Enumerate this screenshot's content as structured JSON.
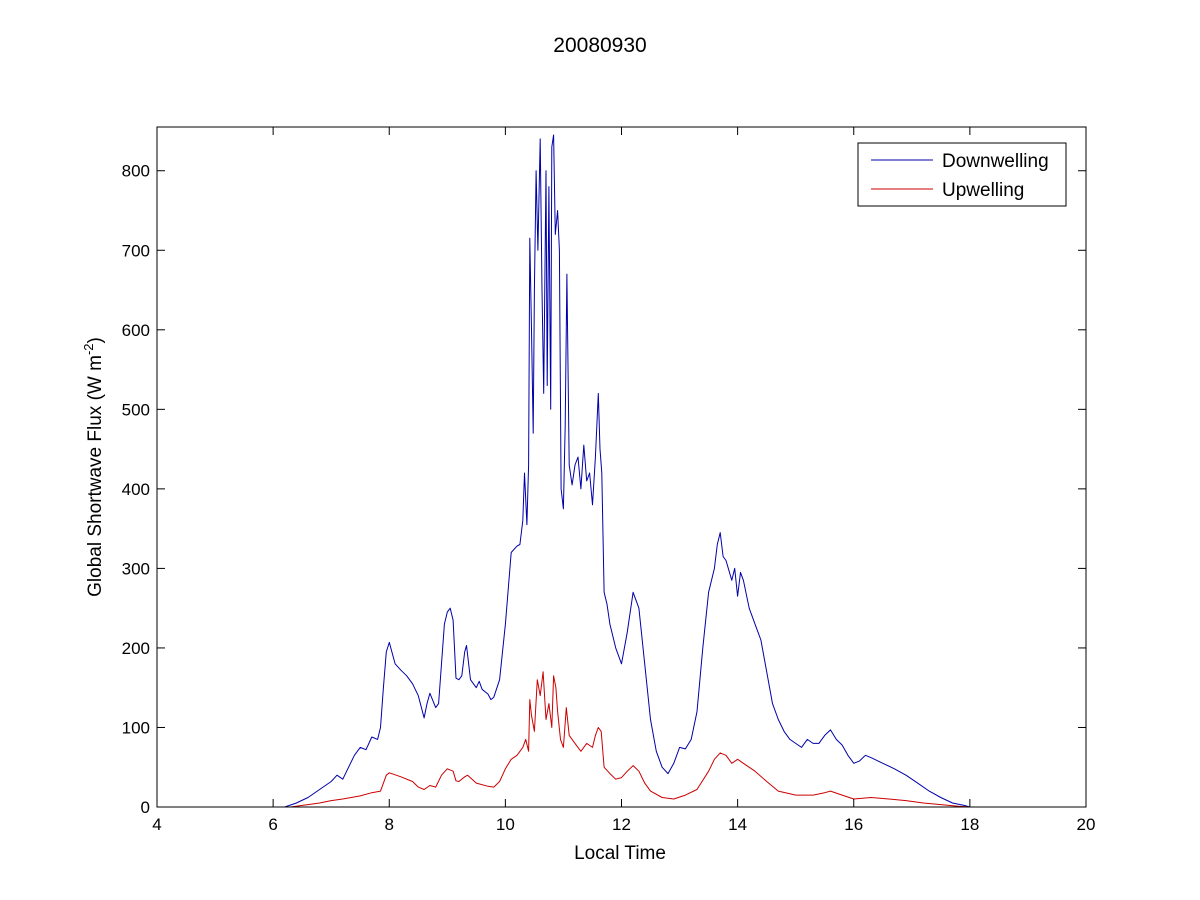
{
  "chart_data": {
    "type": "line",
    "title": "20080930",
    "xlabel": "Local Time",
    "ylabel_main": "Global Shortwave Flux (W m",
    "ylabel_sup": "-2",
    "ylabel_close": ")",
    "xlim": [
      4,
      20
    ],
    "ylim": [
      0,
      855
    ],
    "xticks": [
      4,
      6,
      8,
      10,
      12,
      14,
      16,
      18,
      20
    ],
    "yticks": [
      0,
      100,
      200,
      300,
      400,
      500,
      600,
      700,
      800
    ],
    "legend_position": "top-right",
    "series": [
      {
        "name": "Downwelling",
        "color": "#0000aa",
        "points": [
          [
            4,
            0
          ],
          [
            5.3,
            0
          ],
          [
            6.2,
            0
          ],
          [
            6.4,
            5
          ],
          [
            6.6,
            12
          ],
          [
            6.8,
            22
          ],
          [
            7.0,
            32
          ],
          [
            7.1,
            40
          ],
          [
            7.2,
            35
          ],
          [
            7.3,
            50
          ],
          [
            7.4,
            65
          ],
          [
            7.5,
            75
          ],
          [
            7.6,
            72
          ],
          [
            7.7,
            88
          ],
          [
            7.8,
            85
          ],
          [
            7.85,
            100
          ],
          [
            7.9,
            150
          ],
          [
            7.95,
            195
          ],
          [
            8.0,
            207
          ],
          [
            8.1,
            180
          ],
          [
            8.2,
            172
          ],
          [
            8.3,
            165
          ],
          [
            8.4,
            155
          ],
          [
            8.5,
            140
          ],
          [
            8.6,
            112
          ],
          [
            8.65,
            130
          ],
          [
            8.7,
            143
          ],
          [
            8.8,
            125
          ],
          [
            8.85,
            130
          ],
          [
            8.9,
            180
          ],
          [
            8.95,
            230
          ],
          [
            9.0,
            245
          ],
          [
            9.05,
            250
          ],
          [
            9.1,
            235
          ],
          [
            9.15,
            162
          ],
          [
            9.2,
            160
          ],
          [
            9.25,
            165
          ],
          [
            9.3,
            195
          ],
          [
            9.33,
            203
          ],
          [
            9.4,
            160
          ],
          [
            9.5,
            150
          ],
          [
            9.55,
            158
          ],
          [
            9.6,
            148
          ],
          [
            9.7,
            142
          ],
          [
            9.75,
            135
          ],
          [
            9.8,
            138
          ],
          [
            9.9,
            160
          ],
          [
            10.0,
            230
          ],
          [
            10.1,
            320
          ],
          [
            10.2,
            328
          ],
          [
            10.25,
            330
          ],
          [
            10.3,
            360
          ],
          [
            10.33,
            420
          ],
          [
            10.37,
            355
          ],
          [
            10.4,
            430
          ],
          [
            10.42,
            715
          ],
          [
            10.45,
            600
          ],
          [
            10.48,
            470
          ],
          [
            10.5,
            650
          ],
          [
            10.53,
            800
          ],
          [
            10.56,
            700
          ],
          [
            10.6,
            840
          ],
          [
            10.63,
            650
          ],
          [
            10.66,
            520
          ],
          [
            10.7,
            800
          ],
          [
            10.72,
            530
          ],
          [
            10.75,
            780
          ],
          [
            10.78,
            500
          ],
          [
            10.8,
            830
          ],
          [
            10.83,
            845
          ],
          [
            10.86,
            720
          ],
          [
            10.9,
            750
          ],
          [
            10.93,
            700
          ],
          [
            10.96,
            400
          ],
          [
            11.0,
            375
          ],
          [
            11.03,
            480
          ],
          [
            11.06,
            670
          ],
          [
            11.1,
            430
          ],
          [
            11.15,
            405
          ],
          [
            11.2,
            430
          ],
          [
            11.25,
            440
          ],
          [
            11.3,
            400
          ],
          [
            11.35,
            455
          ],
          [
            11.4,
            410
          ],
          [
            11.45,
            420
          ],
          [
            11.5,
            380
          ],
          [
            11.55,
            440
          ],
          [
            11.6,
            520
          ],
          [
            11.63,
            450
          ],
          [
            11.66,
            420
          ],
          [
            11.7,
            270
          ],
          [
            11.75,
            255
          ],
          [
            11.8,
            230
          ],
          [
            11.9,
            200
          ],
          [
            12.0,
            180
          ],
          [
            12.1,
            220
          ],
          [
            12.2,
            270
          ],
          [
            12.3,
            250
          ],
          [
            12.4,
            180
          ],
          [
            12.5,
            110
          ],
          [
            12.6,
            70
          ],
          [
            12.7,
            50
          ],
          [
            12.8,
            42
          ],
          [
            12.9,
            55
          ],
          [
            13.0,
            75
          ],
          [
            13.1,
            73
          ],
          [
            13.2,
            85
          ],
          [
            13.3,
            120
          ],
          [
            13.4,
            200
          ],
          [
            13.5,
            270
          ],
          [
            13.6,
            300
          ],
          [
            13.65,
            330
          ],
          [
            13.7,
            345
          ],
          [
            13.75,
            315
          ],
          [
            13.8,
            310
          ],
          [
            13.9,
            285
          ],
          [
            13.95,
            300
          ],
          [
            14.0,
            265
          ],
          [
            14.05,
            295
          ],
          [
            14.1,
            285
          ],
          [
            14.2,
            250
          ],
          [
            14.3,
            230
          ],
          [
            14.4,
            210
          ],
          [
            14.5,
            170
          ],
          [
            14.6,
            130
          ],
          [
            14.7,
            110
          ],
          [
            14.8,
            95
          ],
          [
            14.9,
            85
          ],
          [
            15.0,
            80
          ],
          [
            15.1,
            75
          ],
          [
            15.2,
            85
          ],
          [
            15.3,
            80
          ],
          [
            15.4,
            80
          ],
          [
            15.5,
            90
          ],
          [
            15.6,
            97
          ],
          [
            15.7,
            85
          ],
          [
            15.8,
            78
          ],
          [
            15.9,
            65
          ],
          [
            16.0,
            55
          ],
          [
            16.1,
            58
          ],
          [
            16.2,
            65
          ],
          [
            16.3,
            62
          ],
          [
            16.5,
            55
          ],
          [
            16.7,
            48
          ],
          [
            16.9,
            40
          ],
          [
            17.1,
            30
          ],
          [
            17.3,
            20
          ],
          [
            17.5,
            12
          ],
          [
            17.7,
            5
          ],
          [
            17.9,
            2
          ],
          [
            18.0,
            0
          ]
        ]
      },
      {
        "name": "Upwelling",
        "color": "#cc0000",
        "points": [
          [
            4,
            0
          ],
          [
            5.3,
            0
          ],
          [
            6.3,
            0
          ],
          [
            6.6,
            3
          ],
          [
            6.8,
            5
          ],
          [
            7.0,
            8
          ],
          [
            7.2,
            10
          ],
          [
            7.5,
            14
          ],
          [
            7.7,
            18
          ],
          [
            7.85,
            20
          ],
          [
            7.95,
            40
          ],
          [
            8.0,
            43
          ],
          [
            8.2,
            38
          ],
          [
            8.4,
            32
          ],
          [
            8.5,
            25
          ],
          [
            8.6,
            22
          ],
          [
            8.7,
            27
          ],
          [
            8.8,
            25
          ],
          [
            8.9,
            40
          ],
          [
            9.0,
            48
          ],
          [
            9.1,
            45
          ],
          [
            9.15,
            33
          ],
          [
            9.2,
            32
          ],
          [
            9.3,
            38
          ],
          [
            9.35,
            40
          ],
          [
            9.5,
            30
          ],
          [
            9.7,
            26
          ],
          [
            9.8,
            25
          ],
          [
            9.9,
            32
          ],
          [
            10.0,
            48
          ],
          [
            10.1,
            60
          ],
          [
            10.2,
            65
          ],
          [
            10.3,
            75
          ],
          [
            10.35,
            85
          ],
          [
            10.4,
            70
          ],
          [
            10.42,
            135
          ],
          [
            10.45,
            115
          ],
          [
            10.5,
            95
          ],
          [
            10.55,
            160
          ],
          [
            10.6,
            140
          ],
          [
            10.65,
            170
          ],
          [
            10.7,
            110
          ],
          [
            10.75,
            130
          ],
          [
            10.8,
            100
          ],
          [
            10.83,
            165
          ],
          [
            10.87,
            150
          ],
          [
            10.9,
            120
          ],
          [
            10.95,
            85
          ],
          [
            11.0,
            75
          ],
          [
            11.05,
            125
          ],
          [
            11.1,
            90
          ],
          [
            11.2,
            80
          ],
          [
            11.3,
            70
          ],
          [
            11.4,
            80
          ],
          [
            11.5,
            75
          ],
          [
            11.55,
            90
          ],
          [
            11.6,
            100
          ],
          [
            11.65,
            95
          ],
          [
            11.7,
            50
          ],
          [
            11.8,
            42
          ],
          [
            11.9,
            35
          ],
          [
            12.0,
            37
          ],
          [
            12.1,
            45
          ],
          [
            12.2,
            52
          ],
          [
            12.3,
            45
          ],
          [
            12.4,
            30
          ],
          [
            12.5,
            20
          ],
          [
            12.7,
            12
          ],
          [
            12.9,
            10
          ],
          [
            13.1,
            15
          ],
          [
            13.3,
            22
          ],
          [
            13.5,
            45
          ],
          [
            13.6,
            60
          ],
          [
            13.7,
            68
          ],
          [
            13.8,
            65
          ],
          [
            13.9,
            55
          ],
          [
            14.0,
            60
          ],
          [
            14.1,
            55
          ],
          [
            14.3,
            45
          ],
          [
            14.5,
            32
          ],
          [
            14.7,
            20
          ],
          [
            15.0,
            15
          ],
          [
            15.3,
            15
          ],
          [
            15.5,
            18
          ],
          [
            15.6,
            20
          ],
          [
            15.8,
            15
          ],
          [
            16.0,
            10
          ],
          [
            16.3,
            12
          ],
          [
            16.6,
            10
          ],
          [
            16.9,
            8
          ],
          [
            17.2,
            5
          ],
          [
            17.5,
            3
          ],
          [
            17.8,
            1
          ],
          [
            18.0,
            0
          ]
        ]
      }
    ]
  }
}
